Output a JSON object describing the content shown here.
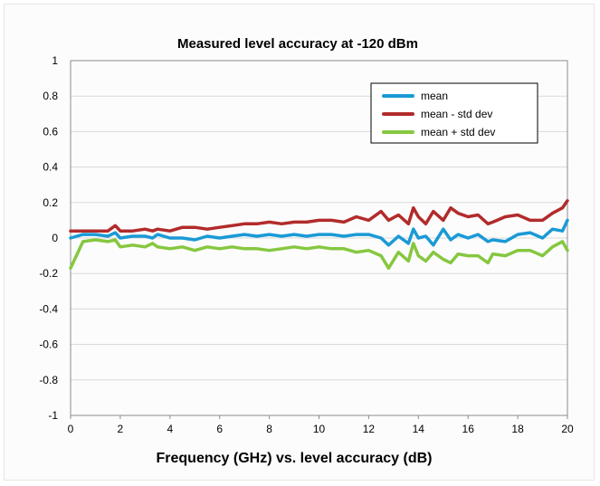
{
  "chart_data": {
    "type": "line",
    "title": "Measured level accuracy  at -120 dBm",
    "xlabel": "Frequency (GHz) vs. level accuracy (dB)",
    "ylabel": "",
    "xlim": [
      0,
      20
    ],
    "ylim": [
      -1,
      1
    ],
    "x_ticks": [
      0,
      2,
      4,
      6,
      8,
      10,
      12,
      14,
      16,
      18,
      20
    ],
    "y_ticks": [
      1,
      0.8,
      0.6,
      0.4,
      0.2,
      0,
      -0.2,
      -0.4,
      -0.6,
      -0.8,
      -1
    ],
    "grid": "horizontal",
    "legend_position": "top-right",
    "x": [
      0,
      0.5,
      1,
      1.5,
      1.8,
      2,
      2.5,
      3,
      3.3,
      3.5,
      4,
      4.5,
      5,
      5.5,
      6,
      6.5,
      7,
      7.5,
      8,
      8.5,
      9,
      9.5,
      10,
      10.5,
      11,
      11.5,
      12,
      12.5,
      12.8,
      13.2,
      13.6,
      13.8,
      14,
      14.3,
      14.6,
      15,
      15.3,
      15.6,
      16,
      16.4,
      16.8,
      17,
      17.5,
      18,
      18.5,
      19,
      19.4,
      19.8,
      20
    ],
    "series": [
      {
        "name": "mean",
        "color": "#1a9ad6",
        "values": [
          0.0,
          0.02,
          0.02,
          0.01,
          0.03,
          0.0,
          0.01,
          0.01,
          0.0,
          0.02,
          0.0,
          0.0,
          -0.01,
          0.01,
          0.0,
          0.01,
          0.02,
          0.01,
          0.02,
          0.01,
          0.02,
          0.01,
          0.02,
          0.02,
          0.01,
          0.02,
          0.02,
          0.0,
          -0.04,
          0.01,
          -0.03,
          0.05,
          0.0,
          0.01,
          -0.04,
          0.05,
          -0.01,
          0.02,
          0.0,
          0.02,
          -0.02,
          -0.01,
          -0.02,
          0.02,
          0.03,
          0.0,
          0.05,
          0.04,
          0.1
        ]
      },
      {
        "name": "mean - std dev",
        "color": "#b22b2b",
        "values": [
          0.04,
          0.04,
          0.04,
          0.04,
          0.07,
          0.04,
          0.04,
          0.05,
          0.04,
          0.05,
          0.04,
          0.06,
          0.06,
          0.05,
          0.06,
          0.07,
          0.08,
          0.08,
          0.09,
          0.08,
          0.09,
          0.09,
          0.1,
          0.1,
          0.09,
          0.12,
          0.1,
          0.15,
          0.1,
          0.13,
          0.08,
          0.17,
          0.12,
          0.08,
          0.15,
          0.1,
          0.17,
          0.14,
          0.12,
          0.13,
          0.08,
          0.09,
          0.12,
          0.13,
          0.1,
          0.1,
          0.14,
          0.17,
          0.21
        ]
      },
      {
        "name": "mean + std dev",
        "color": "#86c740",
        "values": [
          -0.17,
          -0.02,
          -0.01,
          -0.02,
          -0.01,
          -0.05,
          -0.04,
          -0.05,
          -0.03,
          -0.05,
          -0.06,
          -0.05,
          -0.07,
          -0.05,
          -0.06,
          -0.05,
          -0.06,
          -0.06,
          -0.07,
          -0.06,
          -0.05,
          -0.06,
          -0.05,
          -0.06,
          -0.06,
          -0.08,
          -0.07,
          -0.1,
          -0.17,
          -0.08,
          -0.13,
          -0.03,
          -0.1,
          -0.13,
          -0.08,
          -0.12,
          -0.14,
          -0.09,
          -0.1,
          -0.1,
          -0.14,
          -0.09,
          -0.1,
          -0.07,
          -0.07,
          -0.1,
          -0.05,
          -0.02,
          -0.07
        ]
      }
    ]
  }
}
